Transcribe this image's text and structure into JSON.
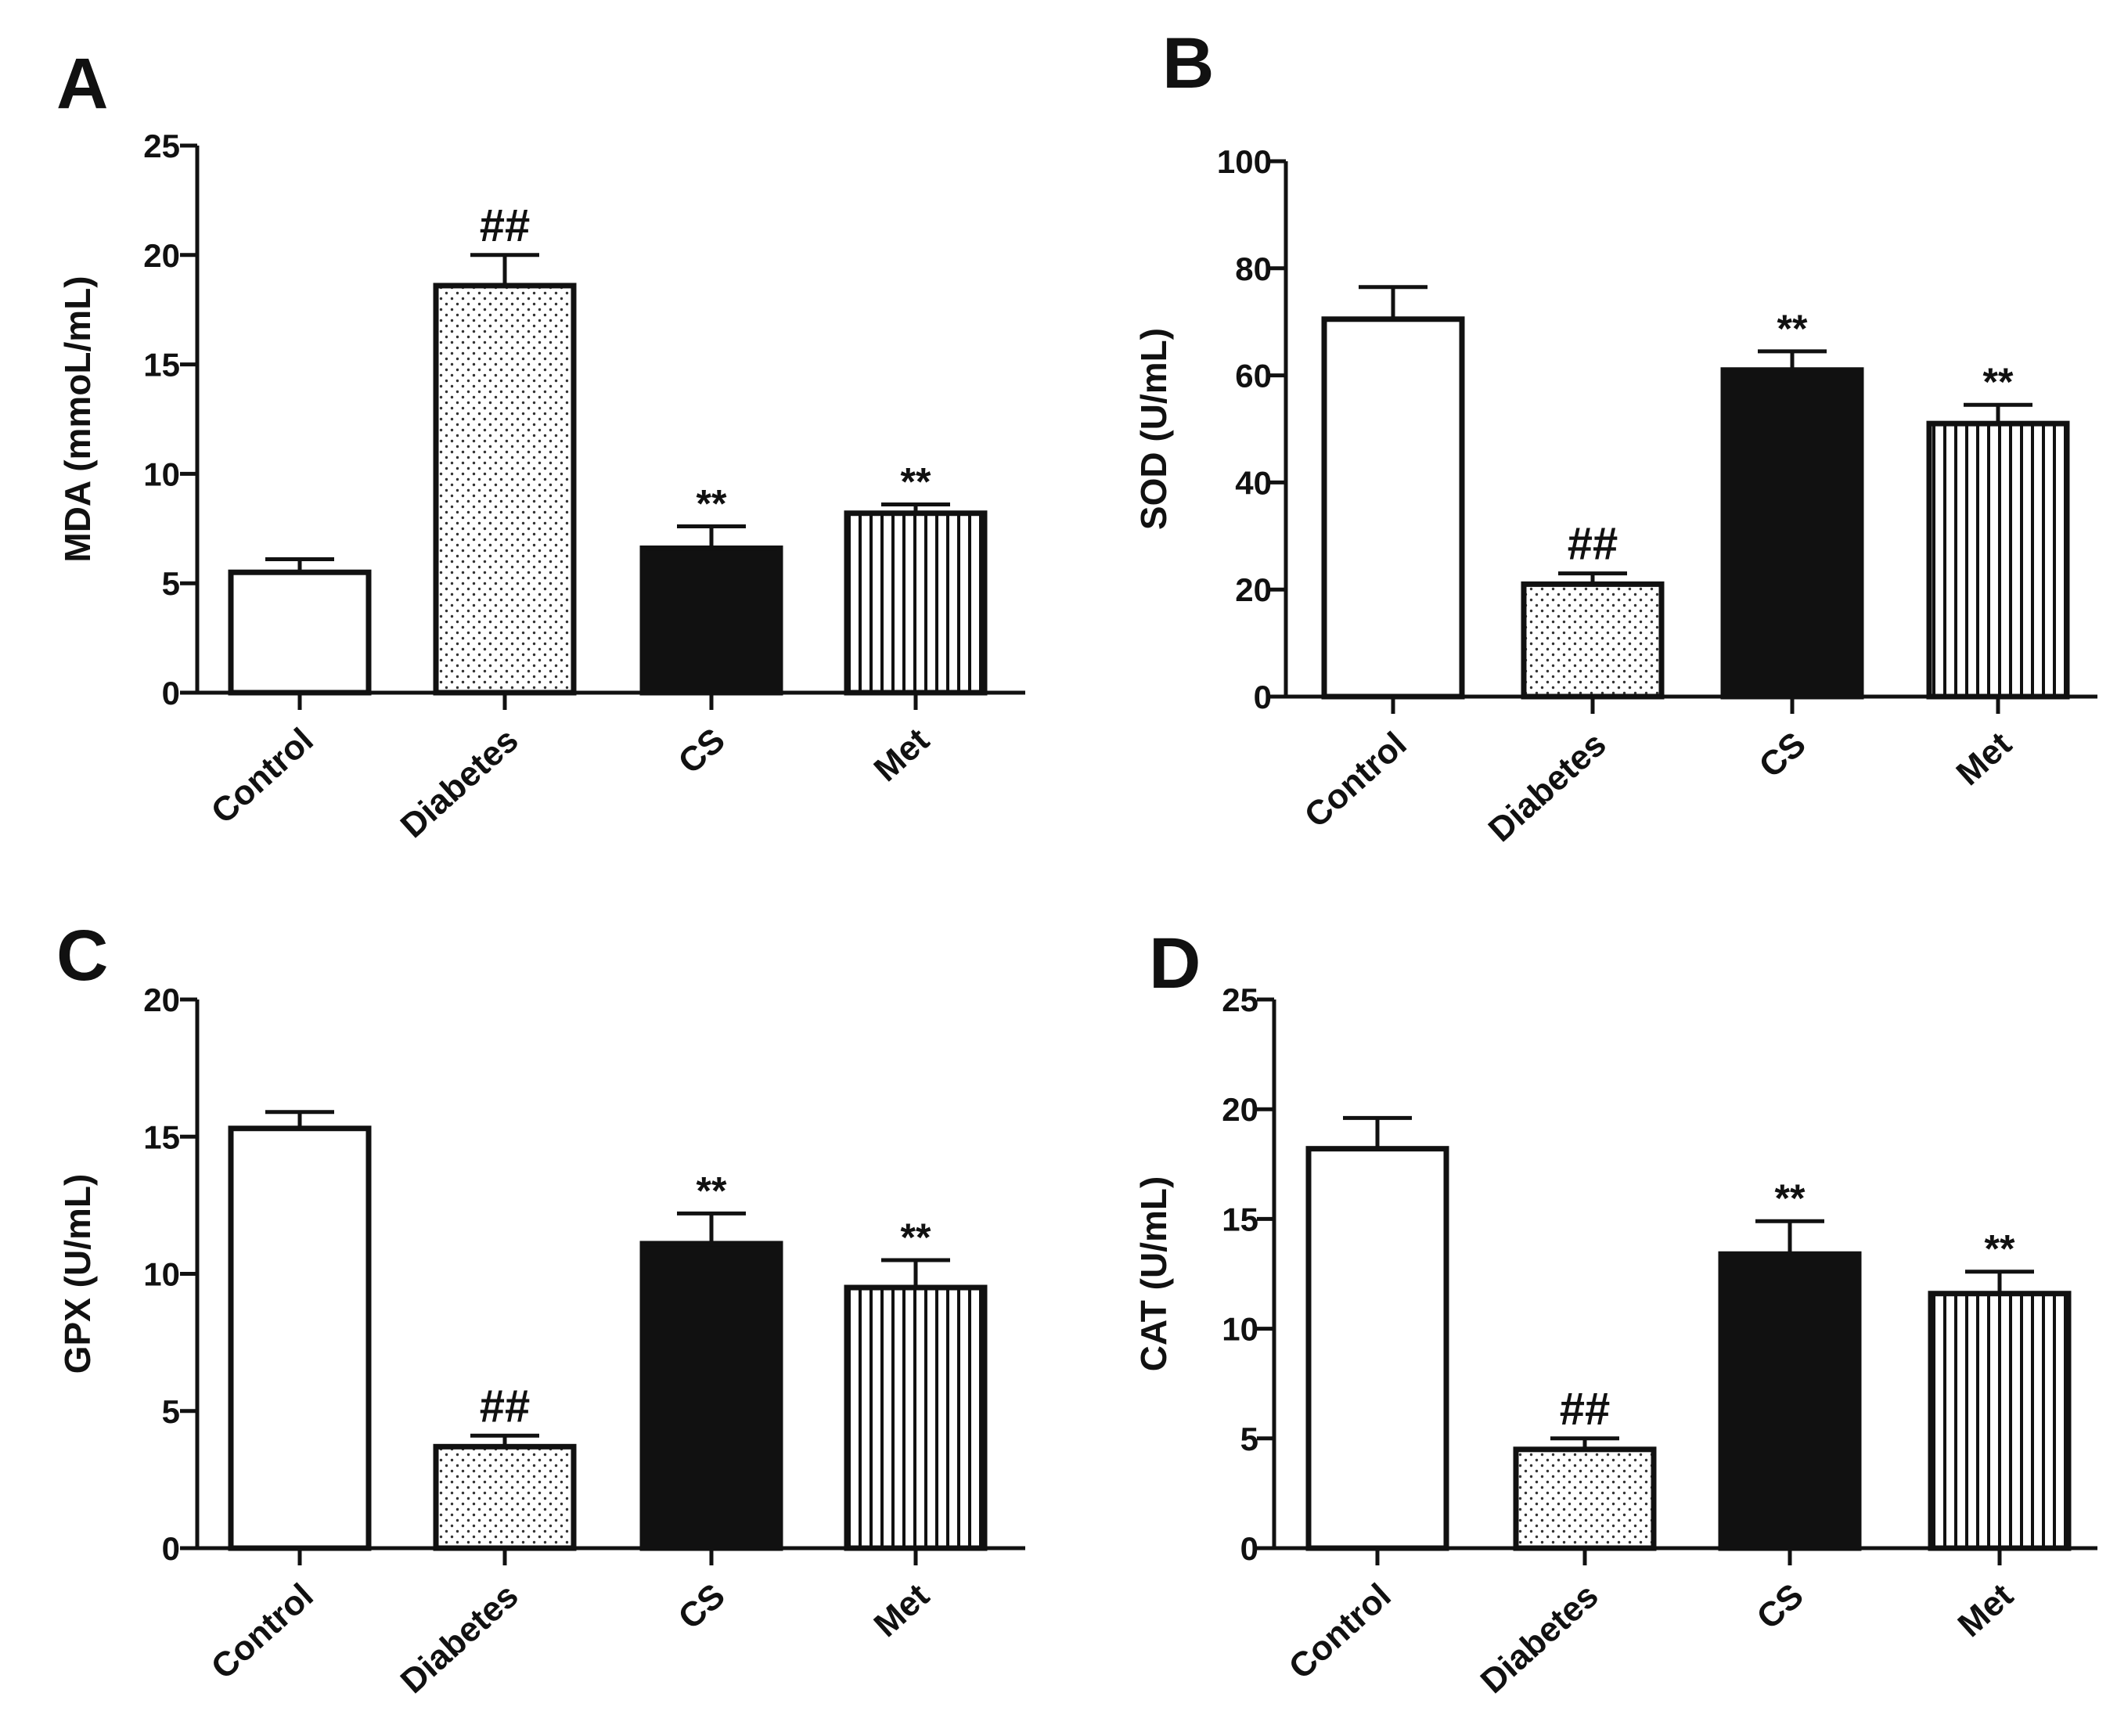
{
  "colors": {
    "ink": "#111111",
    "background": "#ffffff"
  },
  "fills": [
    "white",
    "dots",
    "black",
    "vlines"
  ],
  "chart_data": [
    {
      "panel": "A",
      "type": "bar",
      "ylabel": "MDA (mmoL/mL)",
      "categories": [
        "Control",
        "Diabetes",
        "CS",
        "Met"
      ],
      "values": [
        5.5,
        18.6,
        6.6,
        8.2
      ],
      "errors": [
        0.6,
        1.4,
        1.0,
        0.4
      ],
      "annotations": [
        "",
        "##",
        "**",
        "**"
      ],
      "ylim": [
        0,
        25
      ],
      "yticks": [
        0,
        5,
        10,
        15,
        20,
        25
      ]
    },
    {
      "panel": "B",
      "type": "bar",
      "ylabel": "SOD (U/mL)",
      "categories": [
        "Control",
        "Diabetes",
        "CS",
        "Met"
      ],
      "values": [
        70.5,
        21.0,
        61.0,
        51.0
      ],
      "errors": [
        6.0,
        2.0,
        3.5,
        3.5
      ],
      "annotations": [
        "",
        "##",
        "**",
        "**"
      ],
      "ylim": [
        0,
        100
      ],
      "yticks": [
        0,
        20,
        40,
        60,
        80,
        100
      ]
    },
    {
      "panel": "C",
      "type": "bar",
      "ylabel": "GPX (U/mL)",
      "categories": [
        "Control",
        "Diabetes",
        "CS",
        "Met"
      ],
      "values": [
        15.3,
        3.7,
        11.1,
        9.5
      ],
      "errors": [
        0.6,
        0.4,
        1.1,
        1.0
      ],
      "annotations": [
        "",
        "##",
        "**",
        "**"
      ],
      "ylim": [
        0,
        20
      ],
      "yticks": [
        0,
        5,
        10,
        15,
        20
      ]
    },
    {
      "panel": "D",
      "type": "bar",
      "ylabel": "CAT (U/mL)",
      "categories": [
        "Control",
        "Diabetes",
        "CS",
        "Met"
      ],
      "values": [
        18.2,
        4.5,
        13.4,
        11.6
      ],
      "errors": [
        1.4,
        0.5,
        1.5,
        1.0
      ],
      "annotations": [
        "",
        "##",
        "**",
        "**"
      ],
      "ylim": [
        0,
        25
      ],
      "yticks": [
        0,
        5,
        10,
        15,
        20,
        25
      ]
    }
  ]
}
